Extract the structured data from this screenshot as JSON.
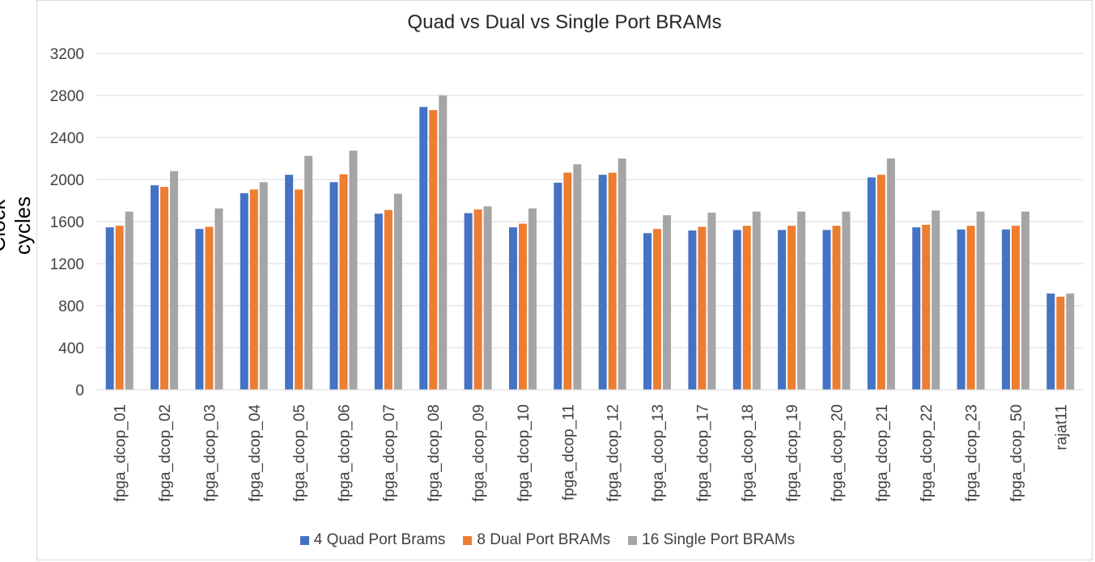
{
  "chart_data": {
    "type": "bar",
    "title": "Quad vs Dual vs Single Port BRAMs",
    "xlabel": "",
    "ylabel": "Clock cycles",
    "ylim": [
      0,
      3200
    ],
    "yticks": [
      0,
      400,
      800,
      1200,
      1600,
      2000,
      2400,
      2800,
      3200
    ],
    "grid": true,
    "legend_position": "bottom",
    "categories": [
      "fpga_dcop_01",
      "fpga_dcop_02",
      "fpga_dcop_03",
      "fpga_dcop_04",
      "fpga_dcop_05",
      "fpga_dcop_06",
      "fpga_dcop_07",
      "fpga_dcop_08",
      "fpga_dcop_09",
      "fpga_dcop_10",
      "fpga_dcop_11",
      "fpga_dcop_12",
      "fpga_dcop_13",
      "fpga_dcop_17",
      "fpga_dcop_18",
      "fpga_dcop_19",
      "fpga_dcop_20",
      "fpga_dcop_21",
      "fpga_dcop_22",
      "fpga_dcop_23",
      "fpga_dcop_50",
      "rajat11"
    ],
    "series": [
      {
        "name": "4 Quad Port Brams",
        "color": "#4472c4",
        "values": [
          1545,
          1945,
          1530,
          1870,
          2045,
          1975,
          1675,
          2690,
          1680,
          1545,
          1970,
          2045,
          1490,
          1515,
          1520,
          1520,
          1520,
          2020,
          1545,
          1525,
          1525,
          915
        ]
      },
      {
        "name": "8 Dual Port BRAMs",
        "color": "#ed7d31",
        "values": [
          1560,
          1930,
          1550,
          1905,
          1905,
          2050,
          1710,
          2660,
          1715,
          1580,
          2065,
          2065,
          1530,
          1550,
          1560,
          1560,
          1560,
          2045,
          1570,
          1560,
          1560,
          885
        ]
      },
      {
        "name": "16 Single Port BRAMs",
        "color": "#a5a5a5",
        "values": [
          1695,
          2080,
          1725,
          1975,
          2225,
          2275,
          1865,
          2800,
          1745,
          1725,
          2145,
          2200,
          1660,
          1685,
          1695,
          1695,
          1695,
          2200,
          1705,
          1695,
          1695,
          915
        ]
      }
    ]
  }
}
